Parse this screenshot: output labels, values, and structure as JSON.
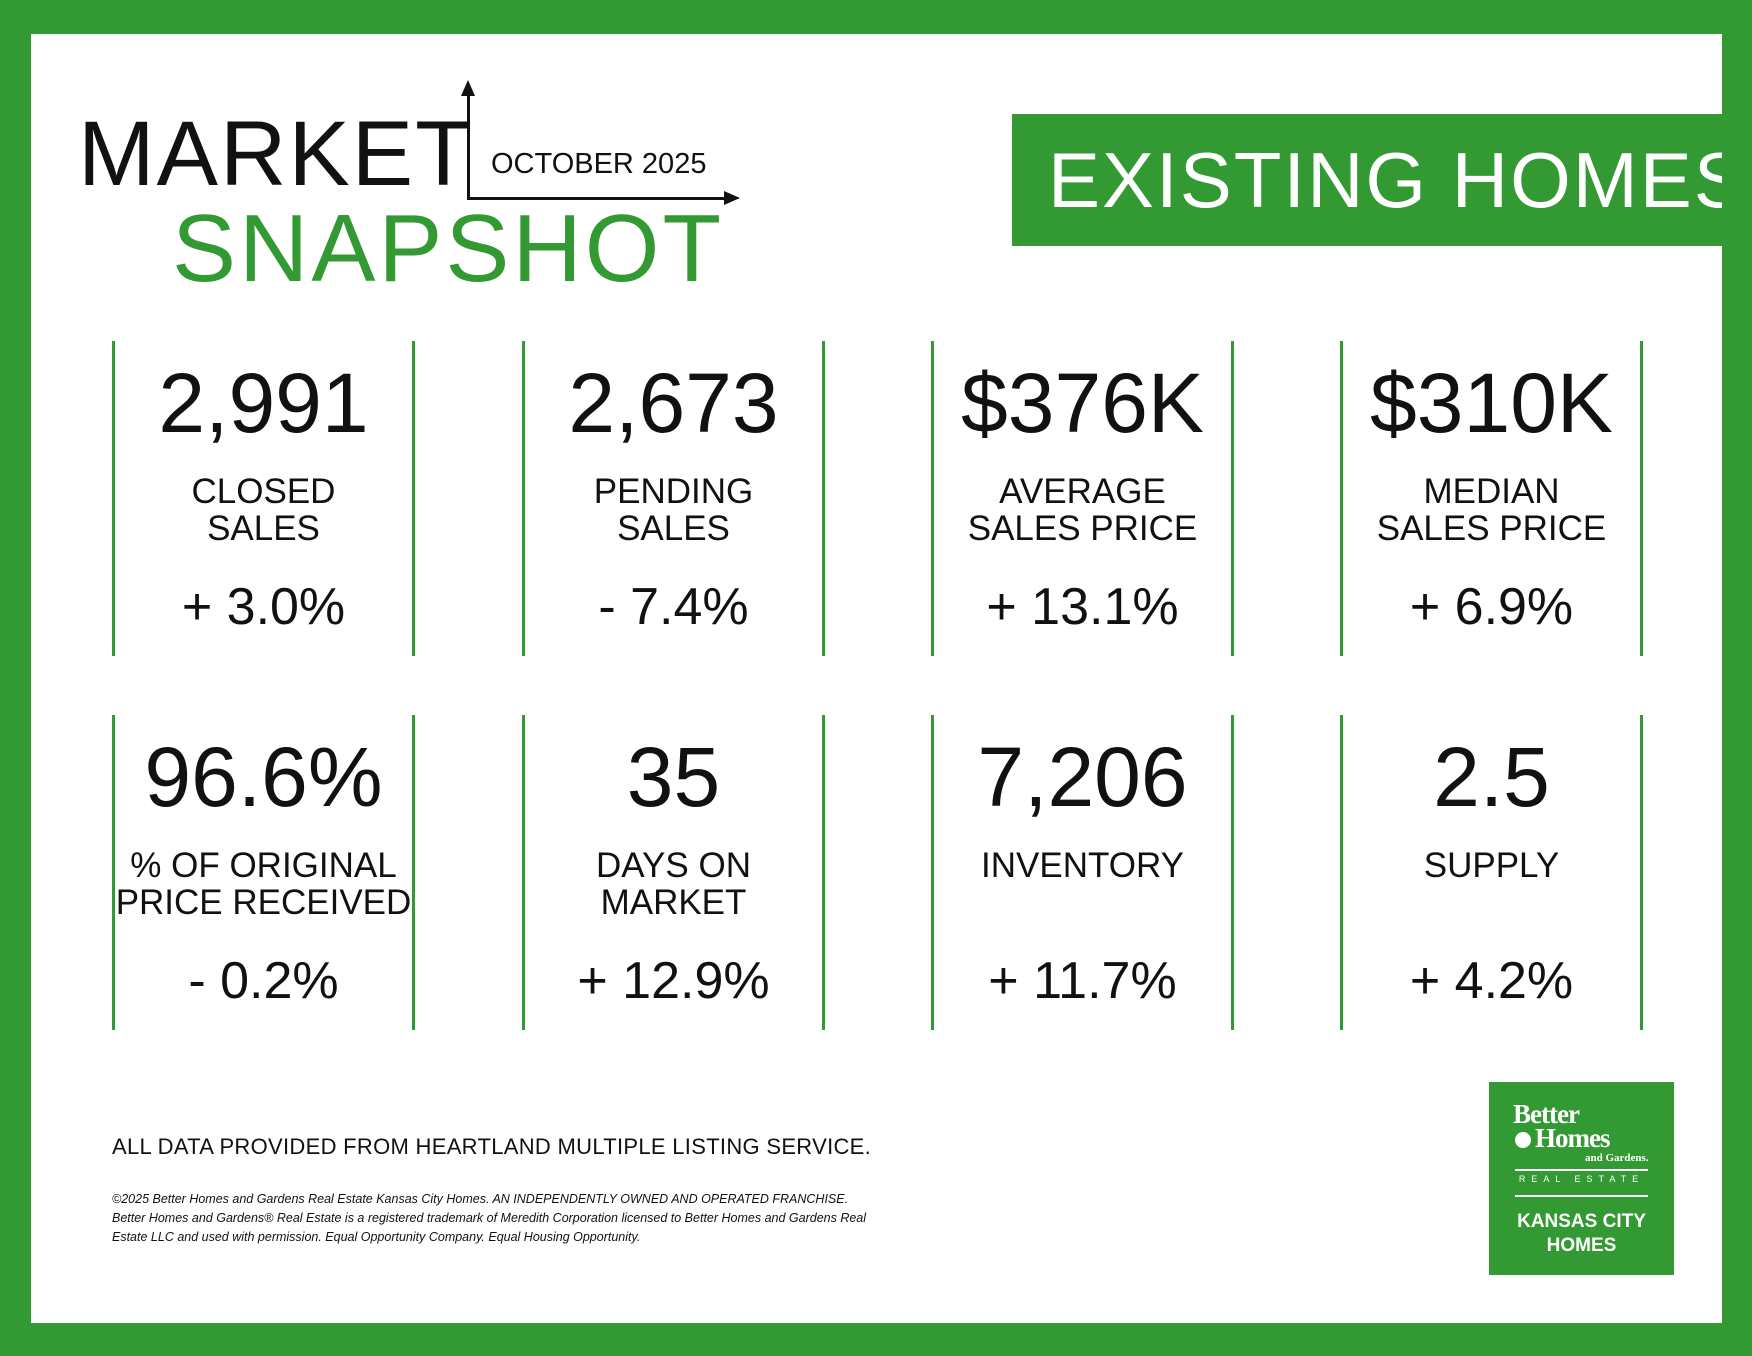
{
  "header": {
    "title_line1": "MARKET",
    "title_line2": "SNAPSHOT",
    "period": "OCTOBER 2025",
    "category": "EXISTING HOMES"
  },
  "metrics": [
    {
      "value": "2,991",
      "label_line1": "CLOSED",
      "label_line2": "SALES",
      "change": "+ 3.0%"
    },
    {
      "value": "2,673",
      "label_line1": "PENDING",
      "label_line2": "SALES",
      "change": "- 7.4%"
    },
    {
      "value": "$376K",
      "label_line1": "AVERAGE",
      "label_line2": "SALES PRICE",
      "change": "+ 13.1%"
    },
    {
      "value": "$310K",
      "label_line1": "MEDIAN",
      "label_line2": "SALES PRICE",
      "change": "+ 6.9%"
    },
    {
      "value": "96.6%",
      "label_line1": "% OF ORIGINAL",
      "label_line2": "PRICE RECEIVED",
      "change": "- 0.2%"
    },
    {
      "value": "35",
      "label_line1": "DAYS ON",
      "label_line2": "MARKET",
      "change": "+ 12.9%"
    },
    {
      "value": "7,206",
      "label_line1": "INVENTORY",
      "label_line2": "",
      "change": "+ 11.7%"
    },
    {
      "value": "2.5",
      "label_line1": "SUPPLY",
      "label_line2": "",
      "change": "+ 4.2%"
    }
  ],
  "footer": {
    "source": "ALL DATA PROVIDED FROM HEARTLAND MULTIPLE LISTING SERVICE.",
    "legal_line1": "©2025 Better Homes and Gardens Real Estate Kansas City Homes. AN INDEPENDENTLY OWNED AND OPERATED FRANCHISE.",
    "legal_line2": "Better Homes and Gardens® Real Estate is a registered trademark of Meredith Corporation licensed to Better Homes and Gardens Real",
    "legal_line3": "Estate LLC and used with permission. Equal Opportunity Company. Equal Housing Opportunity."
  },
  "logo": {
    "brand_line1": "Better",
    "brand_line2": "Homes",
    "brand_line3": "and Gardens.",
    "subtitle": "REAL ESTATE",
    "office_line1": "KANSAS CITY",
    "office_line2": "HOMES"
  },
  "colors": {
    "brand_green": "#339933",
    "text": "#111111",
    "background": "#ffffff"
  }
}
